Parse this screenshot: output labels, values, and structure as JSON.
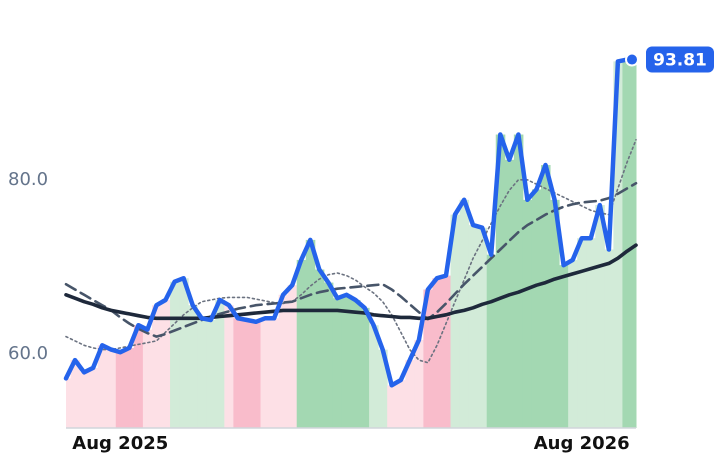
{
  "chart_data": {
    "type": "line",
    "categories": [
      null,
      null,
      null,
      null,
      null,
      null,
      "Aug 2025",
      null,
      null,
      null,
      null,
      null,
      null,
      null,
      null,
      null,
      null,
      null,
      null,
      null,
      null,
      null,
      null,
      null,
      null,
      null,
      null,
      null,
      null,
      null,
      null,
      null,
      null,
      null,
      null,
      null,
      null,
      null,
      null,
      null,
      null,
      null,
      null,
      null,
      null,
      null,
      null,
      null,
      null,
      null,
      null,
      null,
      null,
      null,
      null,
      null,
      null,
      "Aug 2026",
      null,
      null,
      null,
      null,
      null,
      null
    ],
    "series": [
      {
        "color": "#2563eb",
        "values": [
          57.2,
          59.3,
          57.9,
          58.4,
          61.0,
          60.5,
          60.2,
          60.7,
          63.3,
          62.8,
          65.6,
          66.2,
          68.3,
          68.7,
          65.6,
          64.1,
          63.9,
          66.2,
          65.6,
          64.1,
          63.9,
          63.7,
          64.1,
          64.1,
          66.8,
          67.9,
          70.8,
          73.1,
          69.7,
          68.2,
          66.4,
          66.8,
          66.2,
          65.3,
          63.3,
          60.5,
          56.4,
          57.0,
          59.3,
          61.6,
          67.4,
          68.7,
          69.0,
          76.0,
          77.7,
          74.8,
          74.5,
          71.4,
          85.2,
          82.3,
          85.2,
          77.7,
          78.9,
          81.7,
          77.7,
          70.2,
          70.8,
          73.3,
          73.3,
          77.1,
          72.0,
          93.6,
          93.8,
          93.81
        ]
      },
      {
        "color": "#6b7280",
        "values": [
          62.0,
          61.5,
          61.0,
          60.7,
          60.5,
          60.5,
          60.7,
          60.9,
          61.1,
          61.3,
          61.5,
          62.5,
          63.5,
          64.5,
          65.3,
          66.0,
          66.2,
          66.4,
          66.5,
          66.5,
          66.5,
          66.3,
          66.1,
          65.9,
          65.8,
          66.0,
          66.8,
          67.8,
          68.6,
          69.1,
          69.3,
          69.0,
          68.5,
          67.7,
          67.0,
          66.0,
          64.5,
          62.5,
          60.5,
          59.3,
          59.0,
          61.0,
          63.5,
          66.0,
          68.5,
          71.0,
          73.0,
          75.0,
          77.0,
          78.8,
          80.0,
          80.0,
          79.5,
          79.0,
          78.5,
          78.0,
          77.5,
          77.0,
          76.5,
          76.2,
          76.0,
          79.0,
          82.0,
          84.6
        ]
      },
      {
        "color": "#475569",
        "values": [
          68.0,
          67.4,
          66.8,
          66.2,
          65.6,
          65.0,
          64.2,
          63.5,
          62.9,
          62.4,
          62.0,
          62.3,
          62.7,
          63.1,
          63.5,
          63.9,
          64.3,
          64.6,
          64.9,
          65.2,
          65.4,
          65.6,
          65.7,
          65.8,
          65.9,
          66.0,
          66.4,
          66.8,
          67.1,
          67.3,
          67.5,
          67.6,
          67.7,
          67.8,
          67.9,
          68.0,
          67.4,
          66.6,
          65.7,
          64.8,
          64.0,
          64.8,
          65.8,
          66.9,
          68.0,
          69.0,
          70.0,
          71.0,
          72.0,
          73.0,
          74.0,
          74.8,
          75.4,
          76.0,
          76.5,
          76.9,
          77.2,
          77.4,
          77.5,
          77.6,
          77.9,
          78.4,
          79.0,
          79.6
        ]
      },
      {
        "color": "#1e293b",
        "values": [
          66.8,
          66.4,
          66.0,
          65.7,
          65.3,
          65.0,
          64.8,
          64.6,
          64.4,
          64.2,
          64.1,
          64.1,
          64.1,
          64.1,
          64.1,
          64.1,
          64.2,
          64.3,
          64.4,
          64.5,
          64.6,
          64.7,
          64.8,
          64.9,
          65.0,
          65.0,
          65.0,
          65.0,
          65.0,
          65.0,
          65.0,
          64.9,
          64.8,
          64.7,
          64.5,
          64.4,
          64.3,
          64.2,
          64.2,
          64.1,
          64.1,
          64.3,
          64.5,
          64.8,
          65.0,
          65.3,
          65.7,
          66.0,
          66.4,
          66.8,
          67.1,
          67.5,
          67.9,
          68.2,
          68.6,
          68.9,
          69.2,
          69.5,
          69.8,
          70.1,
          70.4,
          71.0,
          71.8,
          72.5
        ]
      }
    ],
    "band_colors": [
      "#fde0e6",
      "#fde0e6",
      "#fde0e6",
      "#fde0e6",
      "#fde0e6",
      "#fde0e6",
      "#f9bccb",
      "#f9bccb",
      "#f9bccb",
      "#fde0e6",
      "#fde0e6",
      "#fde0e6",
      "#d2ebd8",
      "#d2ebd8",
      "#d2ebd8",
      "#d2ebd8",
      "#d2ebd8",
      "#d2ebd8",
      "#fde0e6",
      "#f9bccb",
      "#f9bccb",
      "#f9bccb",
      "#fde0e6",
      "#fde0e6",
      "#fde0e6",
      "#fde0e6",
      "#a3d8b2",
      "#a3d8b2",
      "#a3d8b2",
      "#a3d8b2",
      "#a3d8b2",
      "#a3d8b2",
      "#a3d8b2",
      "#a3d8b2",
      "#d2ebd8",
      "#d2ebd8",
      "#fde0e6",
      "#fde0e6",
      "#fde0e6",
      "#fde0e6",
      "#f9bccb",
      "#f9bccb",
      "#f9bccb",
      "#d2ebd8",
      "#d2ebd8",
      "#d2ebd8",
      "#d2ebd8",
      "#a3d8b2",
      "#a3d8b2",
      "#a3d8b2",
      "#a3d8b2",
      "#a3d8b2",
      "#a3d8b2",
      "#a3d8b2",
      "#a3d8b2",
      "#a3d8b2",
      "#d2ebd8",
      "#d2ebd8",
      "#d2ebd8",
      "#d2ebd8",
      "#d2ebd8",
      "#d2ebd8",
      "#a3d8b2",
      "#a3d8b2"
    ],
    "ylim": [
      51.5,
      99.5
    ],
    "yticks": [
      {
        "value": 60,
        "label": "60.0"
      },
      {
        "value": 80,
        "label": "80.0"
      }
    ]
  }
}
